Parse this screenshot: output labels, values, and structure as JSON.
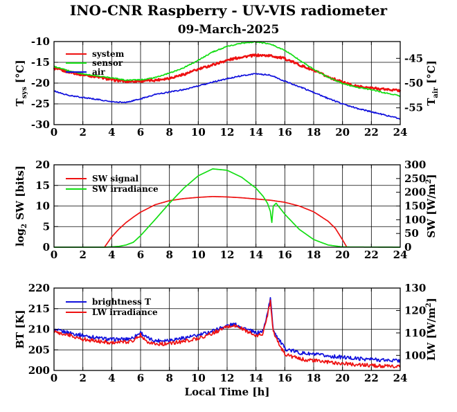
{
  "title": "INO-CNR Raspberry - UV-VIS radiometer",
  "subtitle": "09-March-2025",
  "colors": {
    "red": "#ee1111",
    "green": "#11dd11",
    "blue": "#1111dd",
    "black": "#000000"
  },
  "chart_data": [
    {
      "type": "line",
      "xlabel": "",
      "ylabel_left": {
        "main": "T",
        "sub": "sys",
        "unit": " [°C]"
      },
      "ylabel_right": {
        "main": "T",
        "sub": "air",
        "unit": " [°C]"
      },
      "xlim": [
        0,
        24
      ],
      "xticks": [
        0,
        2,
        4,
        6,
        8,
        10,
        12,
        14,
        16,
        18,
        20,
        22,
        24
      ],
      "ylim": [
        -30,
        -10
      ],
      "yticks": [
        -30,
        -25,
        -20,
        -15,
        -10
      ],
      "ylim_right": [
        -58.4,
        -41.6
      ],
      "yticks_right": [
        -55,
        -50,
        -45
      ],
      "grid": true,
      "legend": "top-left",
      "series": [
        {
          "name": "system",
          "color": "red",
          "axis": "left",
          "x": [
            0,
            1,
            2,
            3,
            4,
            5,
            6,
            7,
            8,
            9,
            10,
            11,
            12,
            13,
            14,
            15,
            16,
            17,
            18,
            19,
            20,
            21,
            22,
            23,
            24
          ],
          "y": [
            -16.5,
            -17.3,
            -18.0,
            -18.5,
            -19.2,
            -19.6,
            -19.5,
            -19.3,
            -18.8,
            -17.9,
            -16.7,
            -15.6,
            -14.5,
            -13.7,
            -13.3,
            -13.4,
            -14.1,
            -15.6,
            -17.0,
            -18.5,
            -19.8,
            -20.8,
            -21.2,
            -21.5,
            -21.8
          ]
        },
        {
          "name": "sensor",
          "color": "green",
          "axis": "left",
          "x": [
            0,
            1,
            2,
            3,
            4,
            5,
            6,
            7,
            8,
            9,
            10,
            11,
            12,
            13,
            14,
            15,
            16,
            17,
            18,
            19,
            20,
            21,
            22,
            23,
            24
          ],
          "y": [
            -16.0,
            -17.0,
            -17.8,
            -18.3,
            -18.7,
            -19.3,
            -19.2,
            -18.7,
            -17.6,
            -16.3,
            -14.5,
            -12.5,
            -11.2,
            -10.4,
            -10.1,
            -10.6,
            -12.1,
            -14.4,
            -16.7,
            -18.6,
            -20.1,
            -21.0,
            -21.6,
            -22.4,
            -23.1
          ]
        },
        {
          "name": "air",
          "color": "blue",
          "axis": "right",
          "x": [
            0,
            1,
            2,
            3,
            4,
            5,
            6,
            7,
            8,
            9,
            10,
            11,
            12,
            13,
            14,
            15,
            16,
            17,
            18,
            19,
            20,
            21,
            22,
            23,
            24
          ],
          "y": [
            -51.6,
            -52.5,
            -52.9,
            -53.3,
            -53.8,
            -53.9,
            -53.2,
            -52.3,
            -51.8,
            -51.3,
            -50.6,
            -49.8,
            -49.1,
            -48.5,
            -48.1,
            -48.4,
            -49.6,
            -50.7,
            -51.9,
            -53.1,
            -54.2,
            -55.1,
            -55.8,
            -56.5,
            -57.2
          ]
        }
      ]
    },
    {
      "type": "line",
      "xlabel": "",
      "ylabel_left": {
        "main": "log",
        "sub": "2",
        "unit": " SW [bits]"
      },
      "ylabel_right": {
        "main": "SW [W/m",
        "sup": "2",
        "unit": "]"
      },
      "xlim": [
        0,
        24
      ],
      "xticks": [
        0,
        2,
        4,
        6,
        8,
        10,
        12,
        14,
        16,
        18,
        20,
        22,
        24
      ],
      "ylim": [
        0,
        20
      ],
      "yticks": [
        0,
        5,
        10,
        15,
        20
      ],
      "ylim_right": [
        0,
        300
      ],
      "yticks_right": [
        0,
        50,
        100,
        150,
        200,
        250,
        300
      ],
      "grid": true,
      "legend": "top-left",
      "series": [
        {
          "name": "SW signal",
          "color": "red",
          "axis": "left",
          "x": [
            3.5,
            4,
            4.5,
            5,
            5.5,
            6,
            7,
            8,
            9,
            10,
            11,
            12,
            13,
            14,
            15,
            16,
            17,
            18,
            19,
            19.5,
            20,
            20.3
          ],
          "y": [
            0,
            2.5,
            4.4,
            6.0,
            7.3,
            8.5,
            10.3,
            11.3,
            11.8,
            12.1,
            12.3,
            12.2,
            12.0,
            11.7,
            11.4,
            10.9,
            10.0,
            8.6,
            6.3,
            4.6,
            1.8,
            0
          ]
        },
        {
          "name": "SW irradiance",
          "color": "green",
          "axis": "right",
          "x": [
            0,
            3.5,
            4.5,
            5,
            5.5,
            6,
            7,
            8,
            9,
            10,
            11,
            12,
            13,
            14,
            14.5,
            14.8,
            15.0,
            15.1,
            15.2,
            15.4,
            16,
            17,
            18,
            19,
            20,
            24
          ],
          "y": [
            0,
            0,
            3,
            8,
            18,
            42,
            100,
            160,
            215,
            260,
            285,
            280,
            255,
            215,
            185,
            160,
            130,
            90,
            150,
            160,
            120,
            65,
            28,
            8,
            1,
            0
          ]
        }
      ]
    },
    {
      "type": "line",
      "xlabel": "Local Time [h]",
      "ylabel_left": {
        "main": "BT [K]"
      },
      "ylabel_right": {
        "main": "LW [W/m",
        "sup": "2",
        "unit": "]"
      },
      "xlim": [
        0,
        24
      ],
      "xticks": [
        0,
        2,
        4,
        6,
        8,
        10,
        12,
        14,
        16,
        18,
        20,
        22,
        24
      ],
      "ylim": [
        200,
        220
      ],
      "yticks": [
        200,
        205,
        210,
        215,
        220
      ],
      "ylim_right": [
        93.3,
        130
      ],
      "yticks_right": [
        100,
        110,
        120,
        130
      ],
      "grid": true,
      "legend": "top-left",
      "series": [
        {
          "name": "brightness T",
          "color": "blue",
          "axis": "left",
          "x": [
            0,
            1,
            2,
            3,
            4,
            5,
            5.5,
            6,
            6.5,
            7,
            8,
            9,
            10,
            11,
            12,
            12.5,
            13,
            13.5,
            14,
            14.5,
            14.8,
            15.0,
            15.2,
            15.5,
            16,
            17,
            18,
            19,
            20,
            21,
            22,
            23,
            24
          ],
          "y": [
            209.8,
            209.2,
            208.5,
            207.9,
            207.5,
            207.6,
            208.0,
            209.2,
            207.8,
            207.2,
            207.4,
            207.9,
            208.5,
            209.6,
            210.9,
            211.2,
            210.6,
            209.8,
            209.0,
            209.6,
            214.0,
            217.5,
            210.0,
            208.0,
            205.3,
            204.3,
            203.9,
            203.5,
            203.2,
            202.9,
            202.7,
            202.5,
            202.4
          ]
        },
        {
          "name": "LW irradiance",
          "color": "red",
          "axis": "left",
          "x": [
            0,
            1,
            2,
            3,
            4,
            5,
            5.5,
            6,
            6.5,
            7,
            8,
            9,
            10,
            11,
            12,
            12.5,
            13,
            13.5,
            14,
            14.5,
            14.8,
            15.0,
            15.2,
            15.5,
            16,
            17,
            18,
            19,
            20,
            21,
            22,
            23,
            24
          ],
          "y": [
            209.3,
            208.6,
            207.6,
            207.1,
            206.8,
            206.9,
            207.3,
            208.6,
            207.0,
            206.4,
            206.5,
            207.1,
            207.8,
            209.0,
            210.6,
            210.9,
            210.2,
            209.3,
            208.3,
            209.0,
            213.5,
            217.0,
            209.5,
            207.0,
            204.0,
            202.8,
            202.4,
            202.0,
            201.7,
            201.4,
            201.2,
            201.0,
            200.9
          ]
        }
      ]
    }
  ]
}
